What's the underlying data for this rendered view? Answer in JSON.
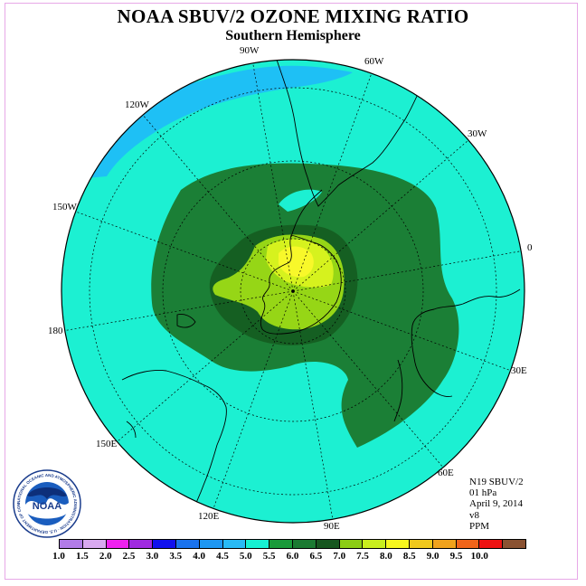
{
  "title": "NOAA SBUV/2 OZONE MIXING RATIO",
  "subtitle": "Southern Hemisphere",
  "longitude_labels": {
    "w90": "90W",
    "w60": "60W",
    "w30": "30W",
    "w120": "120W",
    "w150": "150W",
    "zero": "0",
    "deg180": "180",
    "e30": "30E",
    "e60": "60E",
    "e90": "90E",
    "e120": "120E",
    "e150": "150E"
  },
  "info": {
    "instrument": "N19 SBUV/2",
    "pressure": "01 hPa",
    "date": "April 9, 2014",
    "version": "v8",
    "units": "PPM"
  },
  "colorbar": {
    "colors": [
      "#b27ce8",
      "#d9a9f0",
      "#ef21ef",
      "#a02ae0",
      "#1111ee",
      "#1a73ee",
      "#1e97f2",
      "#28baf5",
      "#16f0d2",
      "#1a9a3a",
      "#1b7a32",
      "#16561f",
      "#8ccd14",
      "#c9ee1e",
      "#f7f71e",
      "#f0c81c",
      "#f0a21c",
      "#f0641a",
      "#ee1212",
      "#8a5232"
    ],
    "tick_labels": [
      "1.0",
      "1.5",
      "2.0",
      "2.5",
      "3.0",
      "3.5",
      "4.0",
      "4.5",
      "5.0",
      "5.5",
      "6.0",
      "6.5",
      "7.0",
      "7.5",
      "8.0",
      "8.5",
      "9.0",
      "9.5",
      "10.0"
    ]
  },
  "map_colors": {
    "band_4_5": "#1ec0f5",
    "band_5_0": "#1cf0d2",
    "band_5_5": "#1b7f36",
    "band_6_0": "#155f22",
    "band_6_5": "#96d616",
    "band_7_0": "#d6f21e",
    "band_7_5": "#f8f82a"
  },
  "logo_text": {
    "name": "NOAA",
    "ring": "NATIONAL OCEANIC AND ATMOSPHERIC ADMINISTRATION · U.S. DEPARTMENT OF COMMERCE"
  }
}
